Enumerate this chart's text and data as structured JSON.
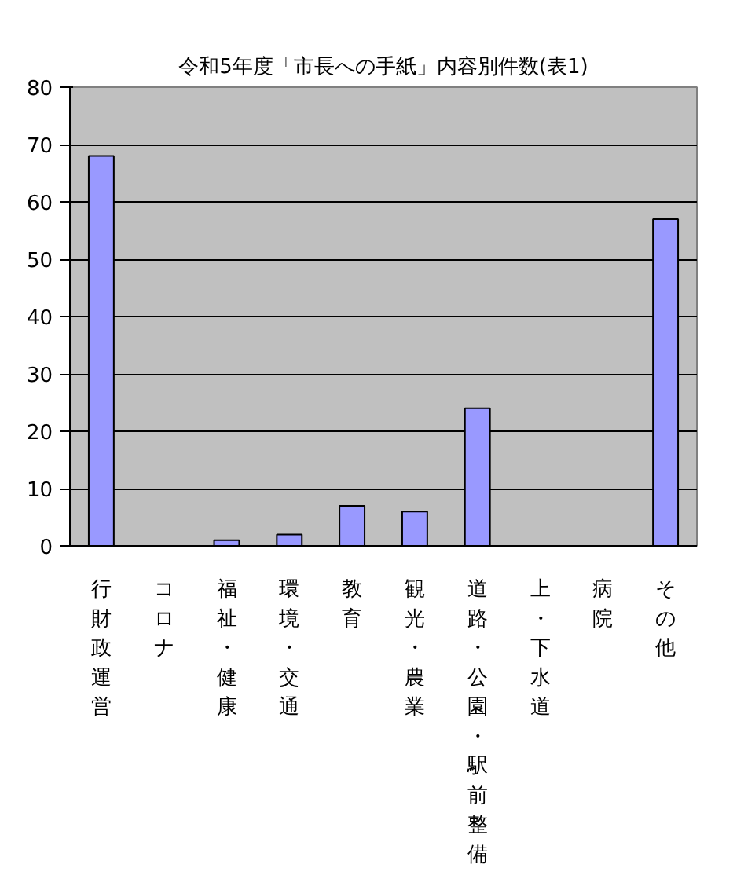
{
  "chart_data": {
    "type": "bar",
    "title": "令和5年度「市長への手紙」内容別件数(表1)",
    "categories": [
      "行財政運営",
      "コロナ",
      "福祉・健康",
      "環境・交通",
      "教育",
      "観光・農業",
      "道路・公園・駅前整備",
      "上・下水道",
      "病院",
      "その他"
    ],
    "values": [
      68,
      0,
      1,
      2,
      7,
      6,
      24,
      0,
      0,
      57
    ],
    "color": "#9999ff",
    "ylim": [
      0,
      80
    ],
    "yticks": [
      0,
      10,
      20,
      30,
      40,
      50,
      60,
      70,
      80
    ],
    "grid": "y"
  }
}
